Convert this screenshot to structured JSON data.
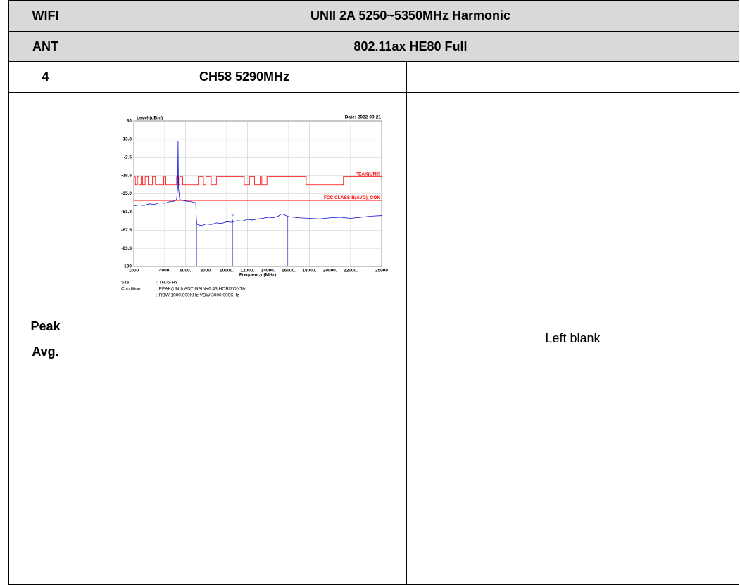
{
  "rows": [
    {
      "label": "WIFI",
      "value": "UNII 2A 5250~5350MHz Harmonic"
    },
    {
      "label": "ANT",
      "value": "802.11ax HE80 Full"
    },
    {
      "label": "4",
      "value": "CH58 5290MHz"
    }
  ],
  "result_row": {
    "label_lines": [
      "Peak",
      "Avg."
    ],
    "note": "Left blank"
  },
  "chart_data": {
    "type": "line",
    "y_label": "Level (dBm)",
    "date": "Date: 2022-09-21",
    "x_label": "Frequency (MHz)",
    "xlim": [
      1000,
      25000
    ],
    "xticks": [
      1000,
      {
        "value": 4000,
        "label": "4000."
      },
      {
        "value": 6000,
        "label": "6000."
      },
      {
        "value": 8000,
        "label": "8000."
      },
      {
        "value": 10000,
        "label": "10000."
      },
      {
        "value": 12000,
        "label": "12000."
      },
      {
        "value": 14000,
        "label": "14000."
      },
      {
        "value": 16000,
        "label": "16000."
      },
      {
        "value": 18000,
        "label": "18000."
      },
      {
        "value": 20000,
        "label": "20000."
      },
      {
        "value": 22000,
        "label": "22000."
      },
      25000
    ],
    "ylim": [
      -100,
      30
    ],
    "yticks": [
      30,
      {
        "value": 13.75,
        "label": "13.8"
      },
      -2.5,
      {
        "value": -18.75,
        "label": "-18.8"
      },
      {
        "value": -35,
        "label": "-35.0"
      },
      {
        "value": -51.25,
        "label": "-51.3"
      },
      -67.5,
      {
        "value": -83.75,
        "label": "-83.8"
      },
      -100
    ],
    "grid": true,
    "series": [
      {
        "name": "PEAK(UNII)",
        "color": "#ff0000",
        "x": [
          1000,
          1150,
          1150,
          1350,
          1350,
          1500,
          1500,
          1700,
          1700,
          1850,
          1850,
          2100,
          2100,
          2400,
          2400,
          2800,
          2800,
          3100,
          3100,
          3900,
          3900,
          4100,
          4100,
          5150,
          5150,
          5350,
          5350,
          5470,
          5470,
          5730,
          5730,
          7250,
          7250,
          7750,
          7750,
          8000,
          8000,
          8500,
          8500,
          9000,
          9000,
          11700,
          11700,
          12200,
          12200,
          12700,
          12700,
          13250,
          13250,
          13400,
          13400,
          13900,
          13900,
          17700,
          17700,
          21300,
          21300,
          25000
        ],
        "values": [
          -20,
          -20,
          -27,
          -27,
          -20,
          -20,
          -27,
          -27,
          -20,
          -20,
          -27,
          -27,
          -20,
          -20,
          -27,
          -27,
          -20,
          -20,
          -27,
          -27,
          -20,
          -20,
          -27,
          -27,
          -20,
          -20,
          -27,
          -27,
          -20,
          -20,
          -27,
          -27,
          -20,
          -20,
          -27,
          -27,
          -20,
          -20,
          -27,
          -27,
          -20,
          -20,
          -27,
          -27,
          -20,
          -20,
          -27,
          -27,
          -20,
          -20,
          -27,
          -27,
          -20,
          -20,
          -27,
          -27,
          -20,
          -20
        ]
      },
      {
        "name": "FCC CLASS-B(AVG)_CON",
        "color": "#ff0000",
        "x": [
          1000,
          25000
        ],
        "values": [
          -41,
          -41
        ]
      },
      {
        "color": "#1010d0",
        "x": [
          1000,
          1500,
          2000,
          2500,
          3000,
          3500,
          4000,
          4500,
          5000,
          5150,
          5250,
          5290,
          5330,
          5450,
          5700,
          6000,
          6500,
          7000,
          7050,
          7100,
          7300,
          7600,
          8000,
          8500,
          9000,
          9500,
          10000,
          10500,
          11000,
          11500,
          12000,
          12500,
          13000,
          13500,
          14000,
          14500,
          15000,
          15300,
          15600,
          16000,
          16500,
          17000,
          18000,
          19000,
          20000,
          21000,
          22000,
          23000,
          24000,
          25000
        ],
        "values": [
          -46,
          -45,
          -45.5,
          -44,
          -44.5,
          -43,
          -43.5,
          -42,
          -41.5,
          -40,
          -30,
          12,
          -30,
          -40,
          -41,
          -41.5,
          -42,
          -43,
          -55,
          -62,
          -63,
          -63.5,
          -62,
          -62.5,
          -61,
          -61.5,
          -60,
          -60.5,
          -59,
          -59.5,
          -58,
          -58.5,
          -57.5,
          -57,
          -56,
          -56.5,
          -55,
          -53,
          -54,
          -55.5,
          -56,
          -56.5,
          -57,
          -57.5,
          -56.5,
          -56,
          -57,
          -56,
          -55,
          -54.5
        ]
      }
    ],
    "markers": {
      "color": "#1010d0",
      "x": [
        7070,
        10550,
        15870
      ],
      "values": [
        -62,
        -58,
        -55.5
      ],
      "labels": [
        null,
        "2",
        null
      ]
    }
  },
  "plot_footer": {
    "site_label": "Site",
    "site": ": TH05-HY",
    "condition_label": "Condition",
    "condition": ": PEAK(UNII) ANT GAIN+6.43 HORIZONTAL",
    "bandwidth": ": RBW:1000.000KHz VBW:3000.000KHz"
  }
}
